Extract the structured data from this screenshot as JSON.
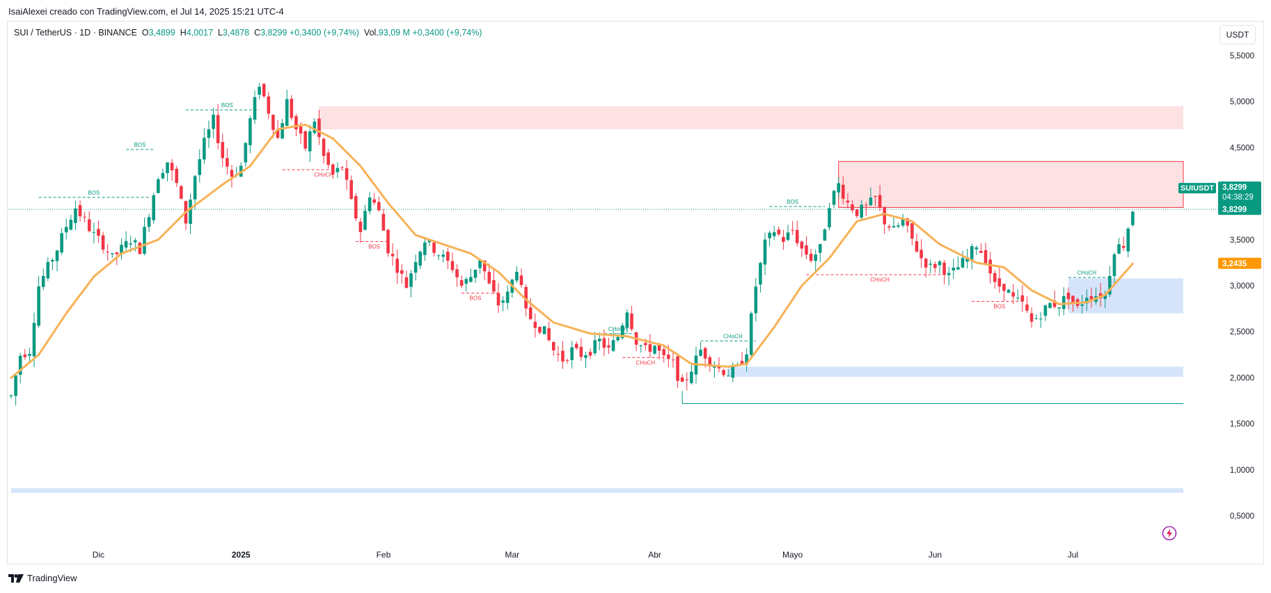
{
  "header": {
    "creator_line": "IsaiAlexei creado con TradingView.com, el Jul 14, 2025 15:21 UTC-4"
  },
  "legend": {
    "symbol": "SUI / TetherUS · 1D · BINANCE",
    "o_label": "O",
    "o_value": "3,4899",
    "h_label": "H",
    "h_value": "4,0017",
    "l_label": "L",
    "l_value": "3,4878",
    "c_label": "C",
    "c_value": "3,8299",
    "change": "+0,3400 (+9,74%)",
    "vol_label": "Vol.",
    "vol_value": "93,09 M",
    "vol_change": "+0,3400 (+9,74%)"
  },
  "currency_button": "USDT",
  "footer": {
    "brand": "TradingView"
  },
  "colors": {
    "up": "#089981",
    "down": "#f23645",
    "ema": "#f7b155",
    "supply_zone": "#fde1e3",
    "demand_zone": "#d6e4fb",
    "grid_text": "#131722"
  },
  "chart_data": {
    "type": "candlestick",
    "symbol": "SUIUSDT",
    "last_price": "3,8299",
    "countdown": "04:38:29",
    "ema_price": "3,2435",
    "y_ticks": [
      "5,5000",
      "5,0000",
      "4,5000",
      "4,0000",
      "3,5000",
      "3,0000",
      "2,5000",
      "2,0000",
      "1,5000",
      "1,0000",
      "0,5000"
    ],
    "y_tick_values": [
      5.5,
      5.0,
      4.5,
      4.0,
      3.5,
      3.0,
      2.5,
      2.0,
      1.5,
      1.0,
      0.5
    ],
    "ylim": [
      0.0,
      5.9
    ],
    "x_labels": [
      {
        "label": "Dic",
        "date": "2024-12-01"
      },
      {
        "label": "2025",
        "date": "2025-01-01",
        "bold": true
      },
      {
        "label": "Feb",
        "date": "2025-02-01"
      },
      {
        "label": "Mar",
        "date": "2025-03-01"
      },
      {
        "label": "Abr",
        "date": "2025-04-01"
      },
      {
        "label": "Mayo",
        "date": "2025-05-01"
      },
      {
        "label": "Jun",
        "date": "2025-06-01"
      },
      {
        "label": "Jul",
        "date": "2025-07-01"
      }
    ],
    "xlim": [
      "2024-11-12",
      "2025-07-25"
    ],
    "price_path": [
      [
        "2024-11-12",
        1.8
      ],
      [
        "2024-11-14",
        2.25
      ],
      [
        "2024-11-16",
        2.3
      ],
      [
        "2024-11-18",
        3.0
      ],
      [
        "2024-11-20",
        3.2
      ],
      [
        "2024-11-22",
        3.4
      ],
      [
        "2024-11-24",
        3.65
      ],
      [
        "2024-11-26",
        3.85
      ],
      [
        "2024-11-28",
        3.7
      ],
      [
        "2024-11-30",
        3.55
      ],
      [
        "2024-12-02",
        3.45
      ],
      [
        "2024-12-04",
        3.3
      ],
      [
        "2024-12-06",
        3.4
      ],
      [
        "2024-12-08",
        3.5
      ],
      [
        "2024-12-10",
        3.4
      ],
      [
        "2024-12-12",
        3.8
      ],
      [
        "2024-12-14",
        4.2
      ],
      [
        "2024-12-16",
        4.35
      ],
      [
        "2024-12-18",
        4.1
      ],
      [
        "2024-12-20",
        3.7
      ],
      [
        "2024-12-22",
        4.2
      ],
      [
        "2024-12-24",
        4.55
      ],
      [
        "2024-12-26",
        4.8
      ],
      [
        "2024-12-28",
        4.4
      ],
      [
        "2024-12-30",
        4.2
      ],
      [
        "2025-01-01",
        4.3
      ],
      [
        "2025-01-03",
        4.8
      ],
      [
        "2025-01-05",
        5.2
      ],
      [
        "2025-01-07",
        4.9
      ],
      [
        "2025-01-09",
        4.6
      ],
      [
        "2025-01-11",
        5.0
      ],
      [
        "2025-01-13",
        4.7
      ],
      [
        "2025-01-15",
        4.5
      ],
      [
        "2025-01-17",
        4.8
      ],
      [
        "2025-01-19",
        4.4
      ],
      [
        "2025-01-21",
        4.2
      ],
      [
        "2025-01-23",
        4.3
      ],
      [
        "2025-01-25",
        3.9
      ],
      [
        "2025-01-27",
        3.6
      ],
      [
        "2025-01-29",
        4.0
      ],
      [
        "2025-01-31",
        3.8
      ],
      [
        "2025-02-02",
        3.4
      ],
      [
        "2025-02-04",
        3.2
      ],
      [
        "2025-02-06",
        3.0
      ],
      [
        "2025-02-08",
        3.3
      ],
      [
        "2025-02-10",
        3.5
      ],
      [
        "2025-02-12",
        3.4
      ],
      [
        "2025-02-14",
        3.3
      ],
      [
        "2025-02-16",
        3.2
      ],
      [
        "2025-02-18",
        3.0
      ],
      [
        "2025-02-20",
        3.1
      ],
      [
        "2025-02-22",
        3.3
      ],
      [
        "2025-02-24",
        3.0
      ],
      [
        "2025-02-26",
        2.8
      ],
      [
        "2025-02-28",
        2.9
      ],
      [
        "2025-03-02",
        3.2
      ],
      [
        "2025-03-04",
        2.7
      ],
      [
        "2025-03-06",
        2.6
      ],
      [
        "2025-03-08",
        2.5
      ],
      [
        "2025-03-10",
        2.3
      ],
      [
        "2025-03-12",
        2.2
      ],
      [
        "2025-03-14",
        2.3
      ],
      [
        "2025-03-16",
        2.25
      ],
      [
        "2025-03-18",
        2.3
      ],
      [
        "2025-03-20",
        2.4
      ],
      [
        "2025-03-22",
        2.3
      ],
      [
        "2025-03-24",
        2.45
      ],
      [
        "2025-03-26",
        2.75
      ],
      [
        "2025-03-28",
        2.4
      ],
      [
        "2025-03-30",
        2.3
      ],
      [
        "2025-04-01",
        2.35
      ],
      [
        "2025-04-03",
        2.2
      ],
      [
        "2025-04-05",
        2.15
      ],
      [
        "2025-04-07",
        1.9
      ],
      [
        "2025-04-09",
        2.1
      ],
      [
        "2025-04-11",
        2.3
      ],
      [
        "2025-04-13",
        2.2
      ],
      [
        "2025-04-15",
        2.1
      ],
      [
        "2025-04-17",
        2.05
      ],
      [
        "2025-04-19",
        2.1
      ],
      [
        "2025-04-21",
        2.3
      ],
      [
        "2025-04-23",
        3.0
      ],
      [
        "2025-04-25",
        3.45
      ],
      [
        "2025-04-27",
        3.6
      ],
      [
        "2025-04-29",
        3.5
      ],
      [
        "2025-05-01",
        3.6
      ],
      [
        "2025-05-03",
        3.4
      ],
      [
        "2025-05-05",
        3.3
      ],
      [
        "2025-05-07",
        3.4
      ],
      [
        "2025-05-09",
        3.9
      ],
      [
        "2025-05-11",
        4.1
      ],
      [
        "2025-05-13",
        3.9
      ],
      [
        "2025-05-15",
        3.8
      ],
      [
        "2025-05-17",
        3.85
      ],
      [
        "2025-05-19",
        3.95
      ],
      [
        "2025-05-21",
        3.7
      ],
      [
        "2025-05-23",
        3.6
      ],
      [
        "2025-05-25",
        3.7
      ],
      [
        "2025-05-27",
        3.5
      ],
      [
        "2025-05-29",
        3.3
      ],
      [
        "2025-05-31",
        3.2
      ],
      [
        "2025-06-02",
        3.25
      ],
      [
        "2025-06-04",
        3.1
      ],
      [
        "2025-06-06",
        3.2
      ],
      [
        "2025-06-08",
        3.3
      ],
      [
        "2025-06-10",
        3.45
      ],
      [
        "2025-06-12",
        3.3
      ],
      [
        "2025-06-14",
        3.0
      ],
      [
        "2025-06-16",
        3.0
      ],
      [
        "2025-06-18",
        2.85
      ],
      [
        "2025-06-20",
        2.8
      ],
      [
        "2025-06-22",
        2.6
      ],
      [
        "2025-06-24",
        2.7
      ],
      [
        "2025-06-26",
        2.8
      ],
      [
        "2025-06-28",
        2.8
      ],
      [
        "2025-06-30",
        2.9
      ],
      [
        "2025-07-02",
        2.75
      ],
      [
        "2025-07-04",
        2.9
      ],
      [
        "2025-07-06",
        2.9
      ],
      [
        "2025-07-08",
        2.9
      ],
      [
        "2025-07-10",
        3.4
      ],
      [
        "2025-07-12",
        3.45
      ],
      [
        "2025-07-14",
        3.83
      ]
    ],
    "ema_path": [
      [
        "2024-11-12",
        2.0
      ],
      [
        "2024-11-18",
        2.25
      ],
      [
        "2024-11-24",
        2.7
      ],
      [
        "2024-11-30",
        3.1
      ],
      [
        "2024-12-06",
        3.35
      ],
      [
        "2024-12-14",
        3.5
      ],
      [
        "2024-12-20",
        3.8
      ],
      [
        "2024-12-28",
        4.1
      ],
      [
        "2025-01-03",
        4.3
      ],
      [
        "2025-01-09",
        4.7
      ],
      [
        "2025-01-15",
        4.75
      ],
      [
        "2025-01-21",
        4.6
      ],
      [
        "2025-01-27",
        4.3
      ],
      [
        "2025-02-02",
        3.9
      ],
      [
        "2025-02-08",
        3.55
      ],
      [
        "2025-02-14",
        3.45
      ],
      [
        "2025-02-20",
        3.35
      ],
      [
        "2025-02-26",
        3.15
      ],
      [
        "2025-03-04",
        2.85
      ],
      [
        "2025-03-10",
        2.6
      ],
      [
        "2025-03-18",
        2.48
      ],
      [
        "2025-03-26",
        2.45
      ],
      [
        "2025-04-03",
        2.35
      ],
      [
        "2025-04-09",
        2.15
      ],
      [
        "2025-04-17",
        2.12
      ],
      [
        "2025-04-21",
        2.15
      ],
      [
        "2025-04-27",
        2.55
      ],
      [
        "2025-05-03",
        3.0
      ],
      [
        "2025-05-09",
        3.3
      ],
      [
        "2025-05-15",
        3.7
      ],
      [
        "2025-05-21",
        3.78
      ],
      [
        "2025-05-27",
        3.7
      ],
      [
        "2025-06-02",
        3.45
      ],
      [
        "2025-06-10",
        3.25
      ],
      [
        "2025-06-16",
        3.2
      ],
      [
        "2025-06-22",
        2.95
      ],
      [
        "2025-06-28",
        2.8
      ],
      [
        "2025-07-04",
        2.82
      ],
      [
        "2025-07-08",
        2.9
      ],
      [
        "2025-07-14",
        3.24
      ]
    ],
    "zones": [
      {
        "kind": "supply",
        "x0": "2025-01-18",
        "x1": "2025-07-25",
        "y0": 4.7,
        "y1": 4.95
      },
      {
        "kind": "supply",
        "x0": "2025-05-11",
        "x1": "2025-07-25",
        "y0": 3.85,
        "y1": 4.35
      },
      {
        "kind": "demand",
        "x0": "2025-04-17",
        "x1": "2025-07-25",
        "y0": 2.01,
        "y1": 2.12
      },
      {
        "kind": "demand",
        "x0": "2025-06-30",
        "x1": "2025-07-25",
        "y0": 2.7,
        "y1": 3.08
      },
      {
        "kind": "demand",
        "x0": "2024-11-12",
        "x1": "2025-07-25",
        "y0": 0.75,
        "y1": 0.8
      }
    ],
    "support_line": {
      "x0": "2025-04-07",
      "x1": "2025-07-25",
      "y": 1.72
    },
    "annotations": [
      {
        "text": "BOS",
        "date": "2024-11-30",
        "y": 3.96,
        "kind": "bull",
        "x0": "2024-11-18",
        "x1": "2024-12-12"
      },
      {
        "text": "BOS",
        "date": "2024-12-10",
        "y": 4.48,
        "kind": "bull",
        "x0": "2024-12-07",
        "x1": "2024-12-13"
      },
      {
        "text": "BOS",
        "date": "2024-12-29",
        "y": 4.91,
        "kind": "bull",
        "x0": "2024-12-20",
        "x1": "2025-01-05"
      },
      {
        "text": "CHoCH",
        "date": "2025-01-19",
        "y": 4.26,
        "kind": "bear",
        "x0": "2025-01-10",
        "x1": "2025-01-25"
      },
      {
        "text": "BOS",
        "date": "2025-01-30",
        "y": 3.48,
        "kind": "bear",
        "x0": "2025-01-26",
        "x1": "2025-02-02"
      },
      {
        "text": "BOS",
        "date": "2025-02-21",
        "y": 2.92,
        "kind": "bear",
        "x0": "2025-02-18",
        "x1": "2025-02-26"
      },
      {
        "text": "CHoCH",
        "date": "2025-03-24",
        "y": 2.48,
        "kind": "bull",
        "x0": "2025-03-20",
        "x1": "2025-03-28"
      },
      {
        "text": "CHoCH",
        "date": "2025-03-30",
        "y": 2.22,
        "kind": "bear",
        "x0": "2025-03-25",
        "x1": "2025-04-03"
      },
      {
        "text": "CHoCH",
        "date": "2025-04-18",
        "y": 2.4,
        "kind": "bull",
        "x0": "2025-04-11",
        "x1": "2025-04-23"
      },
      {
        "text": "BOS",
        "date": "2025-05-01",
        "y": 3.86,
        "kind": "bull",
        "x0": "2025-04-26",
        "x1": "2025-05-08"
      },
      {
        "text": "CHoCH",
        "date": "2025-05-20",
        "y": 3.12,
        "kind": "bear",
        "x0": "2025-05-04",
        "x1": "2025-06-04"
      },
      {
        "text": "BOS",
        "date": "2025-06-15",
        "y": 2.83,
        "kind": "bear",
        "x0": "2025-06-09",
        "x1": "2025-06-20"
      },
      {
        "text": "CHoCH",
        "date": "2025-07-04",
        "y": 3.09,
        "kind": "bull",
        "x0": "2025-06-30",
        "x1": "2025-07-09"
      }
    ]
  }
}
